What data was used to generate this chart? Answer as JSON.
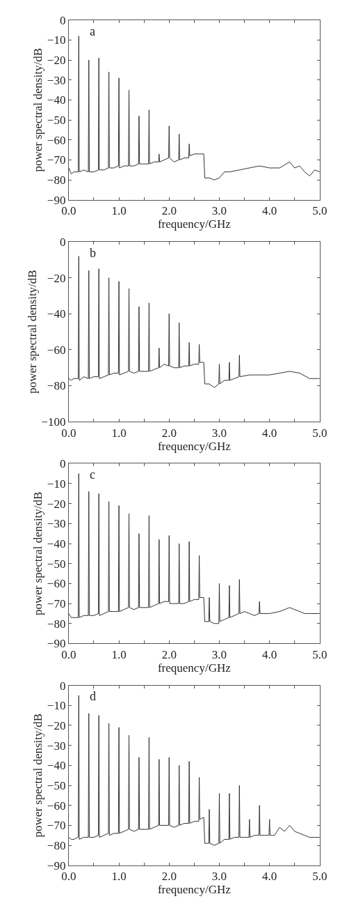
{
  "chart_data": [
    {
      "type": "line",
      "annotations": [
        "a"
      ],
      "xlabel": "frequency/GHz",
      "ylabel": "power spectral density/dB",
      "xlim": [
        0,
        5
      ],
      "ylim": [
        -90,
        0
      ],
      "marker": "none",
      "line_style": "solid",
      "xticks": [
        {
          "value": 0,
          "label": "0.0"
        },
        {
          "value": 0.5,
          "label": null
        },
        {
          "value": 1,
          "label": "1.0"
        },
        {
          "value": 1.5,
          "label": null
        },
        {
          "value": 2,
          "label": "2.0"
        },
        {
          "value": 2.5,
          "label": null
        },
        {
          "value": 3,
          "label": "3.0"
        },
        {
          "value": 3.5,
          "label": null
        },
        {
          "value": 4,
          "label": "4.0"
        },
        {
          "value": 4.5,
          "label": null
        },
        {
          "value": 5,
          "label": "5.0"
        }
      ],
      "yticks": [
        -90,
        -80,
        -70,
        -60,
        -50,
        -40,
        -30,
        -20,
        -10,
        0
      ],
      "series": [
        {
          "color": "#333333",
          "x": [
            0.0,
            0.05,
            0.1,
            0.19,
            0.2,
            0.21,
            0.3,
            0.39,
            0.4,
            0.41,
            0.5,
            0.59,
            0.6,
            0.61,
            0.7,
            0.79,
            0.8,
            0.81,
            0.9,
            0.99,
            1.0,
            1.01,
            1.1,
            1.19,
            1.2,
            1.21,
            1.3,
            1.39,
            1.4,
            1.41,
            1.5,
            1.59,
            1.6,
            1.61,
            1.7,
            1.79,
            1.8,
            1.81,
            1.9,
            1.99,
            2.0,
            2.01,
            2.1,
            2.19,
            2.2,
            2.21,
            2.3,
            2.39,
            2.4,
            2.41,
            2.5,
            2.6,
            2.69,
            2.71,
            2.8,
            2.9,
            3.0,
            3.1,
            3.2,
            3.4,
            3.6,
            3.8,
            4.0,
            4.2,
            4.4,
            4.5,
            4.6,
            4.7,
            4.8,
            4.9,
            5.0
          ],
          "values": [
            -74,
            -77,
            -76,
            -76,
            -8,
            -76,
            -75,
            -76,
            -20,
            -76,
            -76,
            -75,
            -19,
            -75,
            -75,
            -74,
            -26,
            -74,
            -74,
            -73,
            -29,
            -74,
            -73,
            -73,
            -35,
            -73,
            -73,
            -72,
            -48,
            -72,
            -72,
            -72,
            -45,
            -72,
            -71,
            -71,
            -67,
            -71,
            -70,
            -69,
            -53,
            -69,
            -71,
            -70,
            -57,
            -70,
            -69,
            -69,
            -62,
            -68,
            -67,
            -67,
            -67,
            -79,
            -79,
            -80,
            -79,
            -76,
            -76,
            -75,
            -74,
            -73,
            -74,
            -74,
            -71,
            -74,
            -73,
            -76,
            -78,
            -75,
            -76
          ]
        }
      ]
    },
    {
      "type": "line",
      "annotations": [
        "b"
      ],
      "xlabel": "frequency/GHz",
      "ylabel": "power spectral density/dB",
      "xlim": [
        0,
        5
      ],
      "ylim": [
        -100,
        0
      ],
      "marker": "none",
      "line_style": "solid",
      "xticks": [
        {
          "value": 0,
          "label": "0.0"
        },
        {
          "value": 0.5,
          "label": null
        },
        {
          "value": 1,
          "label": "1.0"
        },
        {
          "value": 1.5,
          "label": null
        },
        {
          "value": 2,
          "label": "2.0"
        },
        {
          "value": 2.5,
          "label": null
        },
        {
          "value": 3,
          "label": "3.0"
        },
        {
          "value": 3.5,
          "label": null
        },
        {
          "value": 4,
          "label": "4.0"
        },
        {
          "value": 4.5,
          "label": null
        },
        {
          "value": 5,
          "label": "5.0"
        }
      ],
      "yticks": [
        -100,
        -80,
        -60,
        -40,
        -20,
        0
      ],
      "series": [
        {
          "color": "#333333",
          "x": [
            0.0,
            0.05,
            0.1,
            0.19,
            0.2,
            0.21,
            0.3,
            0.39,
            0.4,
            0.41,
            0.5,
            0.59,
            0.6,
            0.61,
            0.7,
            0.79,
            0.8,
            0.81,
            0.9,
            0.99,
            1.0,
            1.01,
            1.1,
            1.19,
            1.2,
            1.21,
            1.3,
            1.39,
            1.4,
            1.41,
            1.5,
            1.59,
            1.6,
            1.61,
            1.7,
            1.79,
            1.8,
            1.81,
            1.9,
            1.99,
            2.0,
            2.01,
            2.1,
            2.19,
            2.2,
            2.21,
            2.3,
            2.39,
            2.4,
            2.41,
            2.5,
            2.59,
            2.6,
            2.61,
            2.69,
            2.71,
            2.8,
            2.9,
            2.99,
            3.0,
            3.01,
            3.1,
            3.19,
            3.2,
            3.21,
            3.3,
            3.39,
            3.4,
            3.41,
            3.6,
            3.8,
            4.0,
            4.2,
            4.4,
            4.6,
            4.8,
            5.0
          ],
          "values": [
            -76,
            -77,
            -76,
            -76,
            -8,
            -77,
            -75,
            -76,
            -16,
            -76,
            -75,
            -75,
            -15,
            -76,
            -75,
            -74,
            -20,
            -74,
            -73,
            -73,
            -22,
            -74,
            -73,
            -72,
            -26,
            -72,
            -73,
            -72,
            -36,
            -72,
            -72,
            -72,
            -34,
            -72,
            -71,
            -70,
            -59,
            -70,
            -68,
            -69,
            -40,
            -69,
            -70,
            -70,
            -45,
            -70,
            -69,
            -69,
            -56,
            -69,
            -68,
            -68,
            -57,
            -67,
            -67,
            -79,
            -79,
            -81,
            -79,
            -68,
            -79,
            -77,
            -77,
            -67,
            -77,
            -76,
            -75,
            -63,
            -75,
            -74,
            -74,
            -74,
            -73,
            -72,
            -73,
            -76,
            -76
          ]
        }
      ]
    },
    {
      "type": "line",
      "annotations": [
        "c"
      ],
      "xlabel": "frequency/GHz",
      "ylabel": "power spectral density/dB",
      "xlim": [
        0,
        5
      ],
      "ylim": [
        -90,
        0
      ],
      "marker": "none",
      "line_style": "solid",
      "xticks": [
        {
          "value": 0,
          "label": "0.0"
        },
        {
          "value": 0.5,
          "label": null
        },
        {
          "value": 1,
          "label": "1.0"
        },
        {
          "value": 1.5,
          "label": null
        },
        {
          "value": 2,
          "label": "2.0"
        },
        {
          "value": 2.5,
          "label": null
        },
        {
          "value": 3,
          "label": "3.0"
        },
        {
          "value": 3.5,
          "label": null
        },
        {
          "value": 4,
          "label": "4.0"
        },
        {
          "value": 4.5,
          "label": null
        },
        {
          "value": 5,
          "label": "5.0"
        }
      ],
      "yticks": [
        -90,
        -80,
        -70,
        -60,
        -50,
        -40,
        -30,
        -20,
        -10,
        0
      ],
      "series": [
        {
          "color": "#333333",
          "x": [
            0.0,
            0.05,
            0.1,
            0.19,
            0.2,
            0.21,
            0.3,
            0.39,
            0.4,
            0.41,
            0.5,
            0.59,
            0.6,
            0.61,
            0.7,
            0.79,
            0.8,
            0.81,
            0.9,
            0.99,
            1.0,
            1.01,
            1.1,
            1.19,
            1.2,
            1.21,
            1.3,
            1.39,
            1.4,
            1.41,
            1.5,
            1.59,
            1.6,
            1.61,
            1.7,
            1.79,
            1.8,
            1.81,
            1.9,
            1.99,
            2.0,
            2.01,
            2.1,
            2.19,
            2.2,
            2.21,
            2.3,
            2.39,
            2.4,
            2.41,
            2.5,
            2.59,
            2.6,
            2.61,
            2.69,
            2.71,
            2.79,
            2.8,
            2.81,
            2.9,
            2.99,
            3.0,
            3.01,
            3.1,
            3.19,
            3.2,
            3.21,
            3.3,
            3.39,
            3.4,
            3.41,
            3.5,
            3.6,
            3.7,
            3.79,
            3.8,
            3.81,
            4.0,
            4.2,
            4.4,
            4.6,
            4.7,
            4.8,
            5.0
          ],
          "values": [
            -75,
            -77,
            -77,
            -77,
            -5,
            -77,
            -76,
            -76,
            -14,
            -76,
            -76,
            -75,
            -15,
            -76,
            -75,
            -74,
            -19,
            -74,
            -74,
            -74,
            -21,
            -74,
            -73,
            -72,
            -25,
            -72,
            -73,
            -72,
            -35,
            -72,
            -72,
            -72,
            -26,
            -72,
            -71,
            -70,
            -38,
            -70,
            -69,
            -69,
            -36,
            -70,
            -70,
            -70,
            -40,
            -70,
            -70,
            -69,
            -39,
            -69,
            -68,
            -68,
            -46,
            -67,
            -67,
            -79,
            -79,
            -67,
            -79,
            -80,
            -80,
            -60,
            -79,
            -78,
            -77,
            -61,
            -77,
            -76,
            -75,
            -58,
            -75,
            -74,
            -75,
            -76,
            -75,
            -69,
            -75,
            -75,
            -74,
            -72,
            -74,
            -75,
            -75,
            -75
          ]
        }
      ]
    },
    {
      "type": "line",
      "annotations": [
        "d"
      ],
      "xlabel": "frequency/GHz",
      "ylabel": "power spectral density/dB",
      "xlim": [
        0,
        5
      ],
      "ylim": [
        -90,
        0
      ],
      "marker": "none",
      "line_style": "solid",
      "xticks": [
        {
          "value": 0,
          "label": "0.0"
        },
        {
          "value": 0.5,
          "label": null
        },
        {
          "value": 1,
          "label": "1.0"
        },
        {
          "value": 1.5,
          "label": null
        },
        {
          "value": 2,
          "label": "2.0"
        },
        {
          "value": 2.5,
          "label": null
        },
        {
          "value": 3,
          "label": "3.0"
        },
        {
          "value": 3.5,
          "label": null
        },
        {
          "value": 4,
          "label": "4.0"
        },
        {
          "value": 4.5,
          "label": null
        },
        {
          "value": 5,
          "label": "5.0"
        }
      ],
      "yticks": [
        -90,
        -80,
        -70,
        -60,
        -50,
        -40,
        -30,
        -20,
        -10,
        0
      ],
      "series": [
        {
          "color": "#333333",
          "x": [
            0.0,
            0.05,
            0.1,
            0.19,
            0.2,
            0.21,
            0.3,
            0.39,
            0.4,
            0.41,
            0.5,
            0.59,
            0.6,
            0.61,
            0.7,
            0.79,
            0.8,
            0.81,
            0.9,
            0.99,
            1.0,
            1.01,
            1.1,
            1.19,
            1.2,
            1.21,
            1.3,
            1.39,
            1.4,
            1.41,
            1.5,
            1.59,
            1.6,
            1.61,
            1.7,
            1.79,
            1.8,
            1.81,
            1.9,
            1.99,
            2.0,
            2.01,
            2.1,
            2.19,
            2.2,
            2.21,
            2.3,
            2.39,
            2.4,
            2.41,
            2.5,
            2.59,
            2.6,
            2.61,
            2.69,
            2.71,
            2.79,
            2.8,
            2.81,
            2.9,
            2.99,
            3.0,
            3.01,
            3.1,
            3.19,
            3.2,
            3.21,
            3.3,
            3.39,
            3.4,
            3.41,
            3.5,
            3.59,
            3.6,
            3.61,
            3.7,
            3.79,
            3.8,
            3.81,
            3.9,
            3.99,
            4.0,
            4.01,
            4.1,
            4.2,
            4.3,
            4.4,
            4.5,
            4.6,
            4.7,
            4.8,
            4.9,
            5.0
          ],
          "values": [
            -76,
            -77,
            -77,
            -76,
            -5,
            -77,
            -76,
            -76,
            -14,
            -76,
            -76,
            -75,
            -15,
            -76,
            -75,
            -74,
            -19,
            -75,
            -74,
            -74,
            -21,
            -74,
            -73,
            -72,
            -25,
            -72,
            -73,
            -72,
            -36,
            -72,
            -72,
            -72,
            -26,
            -72,
            -71,
            -70,
            -37,
            -70,
            -70,
            -70,
            -36,
            -70,
            -71,
            -70,
            -40,
            -70,
            -69,
            -69,
            -38,
            -69,
            -68,
            -68,
            -46,
            -67,
            -66,
            -79,
            -79,
            -62,
            -79,
            -80,
            -79,
            -54,
            -79,
            -77,
            -77,
            -54,
            -77,
            -76,
            -76,
            -50,
            -76,
            -76,
            -76,
            -67,
            -76,
            -75,
            -75,
            -60,
            -75,
            -75,
            -75,
            -67,
            -75,
            -75,
            -71,
            -73,
            -70,
            -73,
            -74,
            -75,
            -76,
            -76,
            -76
          ]
        }
      ]
    }
  ]
}
